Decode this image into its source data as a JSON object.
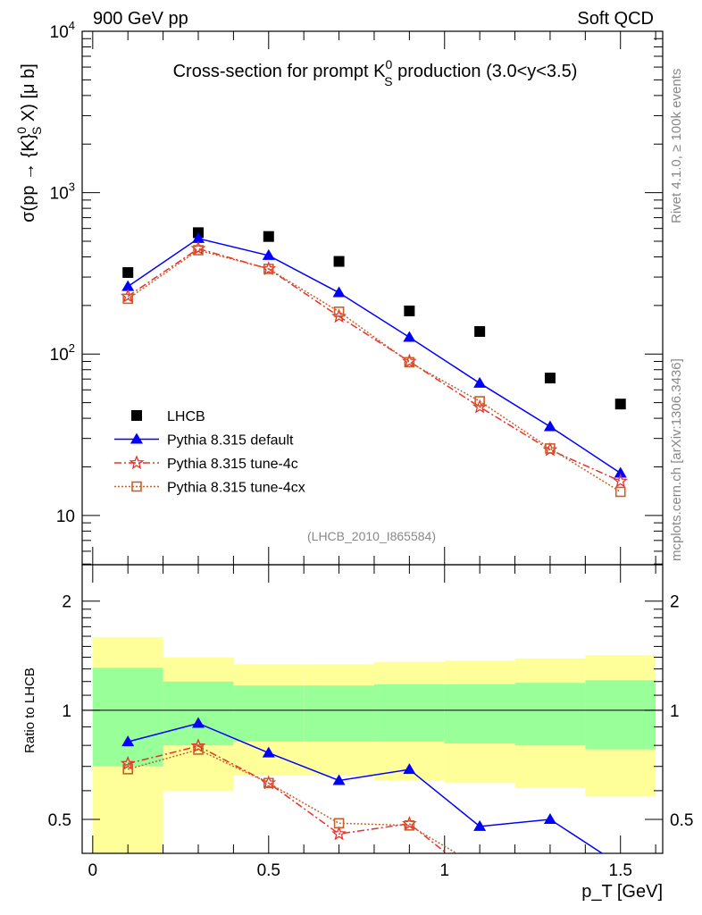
{
  "header": {
    "left": "900 GeV pp",
    "right": "Soft QCD"
  },
  "side_labels": {
    "rivet": "Rivet 4.1.0, ≥ 100k events",
    "mcplots": "mcplots.cern.ch [arXiv:1306.3436]"
  },
  "colors": {
    "lhcb": "#000000",
    "default": "#0000ff",
    "tune4c": "#e8302c",
    "tune4cx": "#c8602a",
    "band_stat": "#99ff99",
    "band_total": "#ffff99"
  },
  "chart_data": [
    {
      "type": "scatter",
      "title": "Cross-section for prompt K0S production (3.0<y<3.5)",
      "title_parts": {
        "pre": "Cross-section for prompt K",
        "sup": "0",
        "sub": "S",
        "post": " production (3.0<y<3.5)"
      },
      "ylabel": "σ(pp → {K}0S X) [μ b]",
      "ylabel_parts": {
        "pre": "σ(pp → {K}",
        "sup": "0",
        "sub": "S",
        "post": " X) [μ b]"
      },
      "yscale": "log",
      "ylim": [
        4.95,
        10000
      ],
      "yticks": [
        {
          "v": 10,
          "label": "10"
        },
        {
          "v": 100,
          "label": "10",
          "exp": "2"
        },
        {
          "v": 1000,
          "label": "10",
          "exp": "3"
        },
        {
          "v": 10000,
          "label": "10",
          "exp": "4"
        }
      ],
      "xlim": [
        -0.03,
        1.62
      ],
      "analysis": "(LHCB_2010_I865584)",
      "legend_position": "center-left",
      "x": [
        0.1,
        0.3,
        0.5,
        0.7,
        0.9,
        1.1,
        1.3,
        1.5
      ],
      "series": [
        {
          "key": "lhcb",
          "name": "LHCB",
          "marker": "filled-square",
          "line": "none",
          "values": [
            320,
            565,
            535,
            375,
            185,
            138,
            71,
            49
          ]
        },
        {
          "key": "default",
          "name": "Pythia 8.315 default",
          "marker": "filled-triangle",
          "line": "solid",
          "values": [
            262,
            520,
            408,
            240,
            127,
            66,
            35.5,
            18.3
          ]
        },
        {
          "key": "tune4c",
          "name": "Pythia 8.315 tune-4c",
          "marker": "open-star",
          "line": "dashdot",
          "values": [
            228,
            450,
            337,
            171,
            90,
            47,
            25.5,
            16.3
          ]
        },
        {
          "key": "tune4cx",
          "name": "Pythia 8.315 tune-4cx",
          "marker": "open-square",
          "line": "dotted",
          "values": [
            220,
            440,
            337,
            183,
            89,
            51,
            26,
            14
          ]
        }
      ]
    },
    {
      "type": "line",
      "ylabel": "Ratio to LHCB",
      "xlabel": "p_T [GeV]",
      "xlabel_parts": {
        "pre": "p",
        "sub": "T",
        "post": " [GeV]"
      },
      "yscale": "log",
      "ylim": [
        0.403,
        2.52
      ],
      "yticks": [
        {
          "v": 0.5,
          "label": "0.5"
        },
        {
          "v": 1,
          "label": "1"
        },
        {
          "v": 2,
          "label": "2"
        }
      ],
      "xticks": [
        {
          "v": 0,
          "label": "0"
        },
        {
          "v": 0.5,
          "label": "0.5"
        },
        {
          "v": 1,
          "label": "1"
        },
        {
          "v": 1.5,
          "label": "1.5"
        }
      ],
      "bins": [
        [
          0,
          0.2
        ],
        [
          0.2,
          0.4
        ],
        [
          0.4,
          0.6
        ],
        [
          0.6,
          0.8
        ],
        [
          0.8,
          1.0
        ],
        [
          1.0,
          1.2
        ],
        [
          1.2,
          1.4
        ],
        [
          1.4,
          1.6
        ]
      ],
      "band_total": {
        "low": [
          0.3,
          0.6,
          0.66,
          0.66,
          0.64,
          0.63,
          0.61,
          0.58
        ],
        "high": [
          1.59,
          1.4,
          1.34,
          1.34,
          1.36,
          1.37,
          1.39,
          1.42
        ]
      },
      "band_stat": {
        "low": [
          0.7,
          0.8,
          0.82,
          0.82,
          0.82,
          0.81,
          0.8,
          0.78
        ],
        "high": [
          1.31,
          1.2,
          1.17,
          1.17,
          1.18,
          1.18,
          1.19,
          1.21
        ]
      },
      "reference_line": 1
    }
  ]
}
